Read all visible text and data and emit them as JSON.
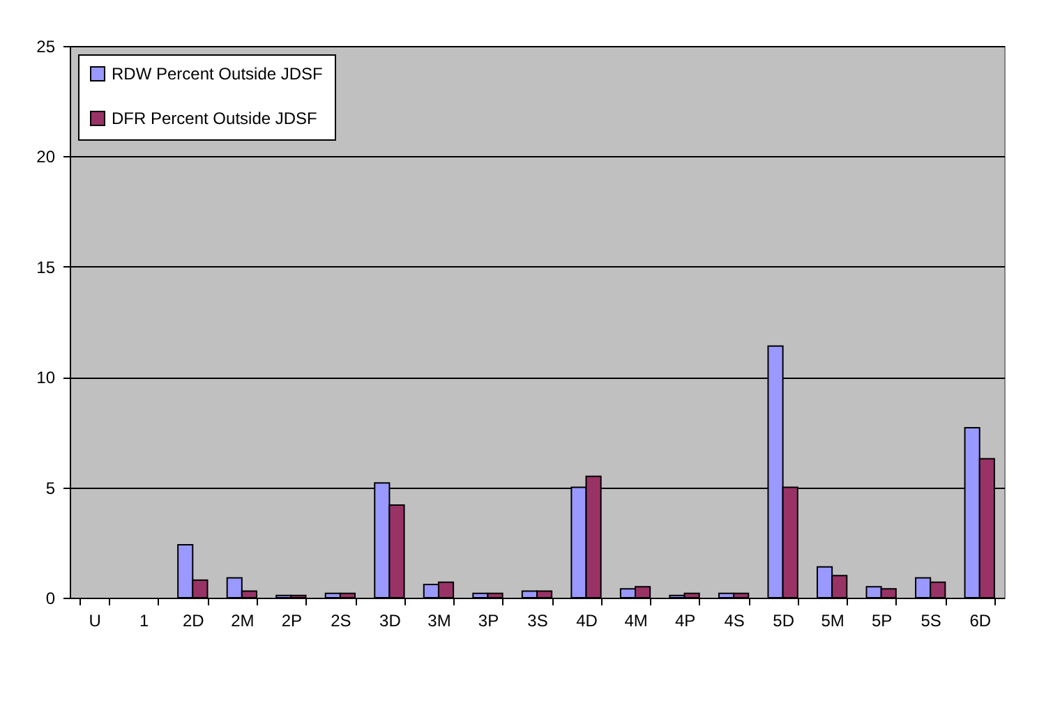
{
  "chart_data": {
    "type": "bar",
    "categories": [
      "U",
      "1",
      "2D",
      "2M",
      "2P",
      "2S",
      "3D",
      "3M",
      "3P",
      "3S",
      "4D",
      "4M",
      "4P",
      "4S",
      "5D",
      "5M",
      "5P",
      "5S",
      "6D"
    ],
    "series": [
      {
        "name": "RDW Percent Outside JDSF",
        "color": "#9999ff",
        "values": [
          null,
          null,
          2.4,
          0.9,
          0.1,
          0.2,
          5.2,
          0.6,
          0.2,
          0.3,
          5.0,
          0.4,
          0.1,
          0.2,
          11.4,
          1.4,
          0.5,
          0.9,
          7.7
        ]
      },
      {
        "name": "DFR Percent Outside JDSF",
        "color": "#993366",
        "values": [
          null,
          null,
          0.8,
          0.3,
          0.1,
          0.2,
          4.2,
          0.7,
          0.2,
          0.3,
          5.5,
          0.5,
          0.2,
          0.2,
          5.0,
          1.0,
          0.4,
          0.7,
          6.3
        ]
      }
    ],
    "ylim": [
      0,
      25
    ],
    "yticks": [
      0,
      5,
      10,
      15,
      20,
      25
    ],
    "grid": "y",
    "legend": "top left"
  }
}
